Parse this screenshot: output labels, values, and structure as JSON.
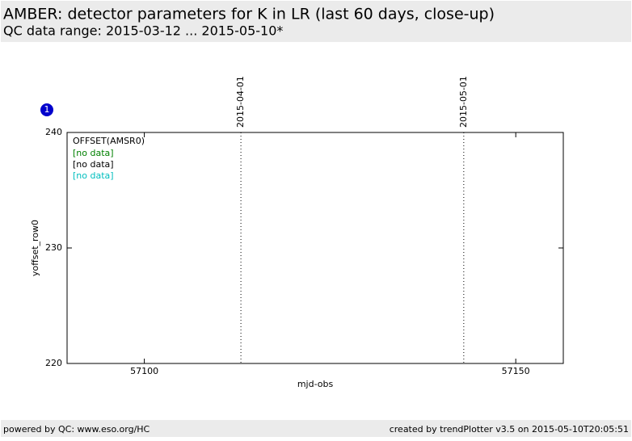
{
  "chart_data": {
    "type": "line",
    "title": "AMBER: detector parameters for K in LR (last 60 days, close-up)",
    "subtitle": "QC data range: 2015-03-12 ... 2015-05-10*",
    "badge": "1",
    "x_label": "mjd-obs",
    "y_label": "yoffset_row0",
    "xlim": [
      57089.6,
      57156.4
    ],
    "ylim": [
      220,
      240
    ],
    "xticks": [
      57100,
      57150
    ],
    "yticks": [
      220,
      230,
      240
    ],
    "legend_title": "OFFSET(AMSR0)",
    "x": [],
    "series": [
      {
        "name": "[no data]",
        "color": "#008000",
        "values": []
      },
      {
        "name": "[no data]",
        "color": "#000000",
        "values": []
      },
      {
        "name": "[no data]",
        "color": "#00bfbf",
        "values": []
      }
    ],
    "annotations": [
      {
        "x": 57113,
        "label": "2015-04-01"
      },
      {
        "x": 57143,
        "label": "2015-05-01"
      }
    ]
  },
  "footer": {
    "left": "powered by QC: www.eso.org/HC",
    "right": "created by trendPlotter v3.5 on 2015-05-10T20:05:51"
  }
}
